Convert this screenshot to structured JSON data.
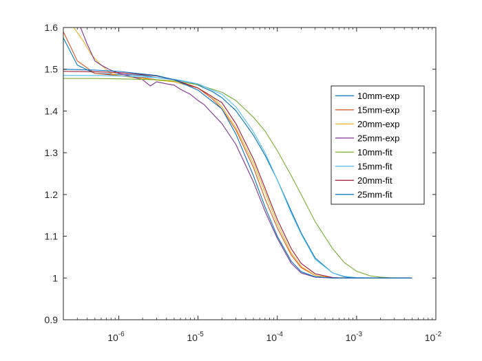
{
  "chart_data": {
    "type": "line",
    "xscale": "log",
    "xlim": [
      2e-07,
      0.01
    ],
    "ylim": [
      0.9,
      1.6
    ],
    "grid": false,
    "legend_position": "top-right",
    "xticks": [
      {
        "value": 1e-06,
        "base": "10",
        "exp": "-6"
      },
      {
        "value": 1e-05,
        "base": "10",
        "exp": "-5"
      },
      {
        "value": 0.0001,
        "base": "10",
        "exp": "-4"
      },
      {
        "value": 0.001,
        "base": "10",
        "exp": "-3"
      },
      {
        "value": 0.01,
        "base": "10",
        "exp": "-2"
      }
    ],
    "yticks": [
      {
        "value": 0.9,
        "label": "0.9"
      },
      {
        "value": 1.0,
        "label": "1"
      },
      {
        "value": 1.1,
        "label": "1.1"
      },
      {
        "value": 1.2,
        "label": "1.2"
      },
      {
        "value": 1.3,
        "label": "1.3"
      },
      {
        "value": 1.4,
        "label": "1.4"
      },
      {
        "value": 1.5,
        "label": "1.5"
      },
      {
        "value": 1.6,
        "label": "1.6"
      }
    ],
    "series": [
      {
        "name": "10mm-exp",
        "color": "#0072BD",
        "x": [
          2e-07,
          3e-07,
          5e-07,
          1e-06,
          2e-06,
          3e-06,
          5e-06,
          8e-06,
          1e-05,
          1.5e-05,
          2e-05,
          3e-05,
          5e-05,
          7e-05,
          0.0001,
          0.00015,
          0.0002,
          0.0003,
          0.0005,
          0.0007,
          0.001,
          0.002,
          0.005
        ],
        "y": [
          1.575,
          1.51,
          1.49,
          1.488,
          1.485,
          1.48,
          1.475,
          1.468,
          1.462,
          1.447,
          1.432,
          1.401,
          1.342,
          1.294,
          1.235,
          1.16,
          1.108,
          1.048,
          1.012,
          1.003,
          1.0,
          1.0,
          1.0
        ]
      },
      {
        "name": "15mm-exp",
        "color": "#D95319",
        "x": [
          2e-07,
          3e-07,
          5e-07,
          1e-06,
          2e-06,
          3e-06,
          5e-06,
          8e-06,
          1e-05,
          1.5e-05,
          2e-05,
          3e-05,
          5e-05,
          7e-05,
          0.0001,
          0.00015,
          0.0002,
          0.0003,
          0.0005,
          0.0007,
          0.001,
          0.002,
          0.005
        ],
        "y": [
          1.59,
          1.52,
          1.49,
          1.485,
          1.48,
          1.475,
          1.47,
          1.46,
          1.455,
          1.43,
          1.405,
          1.355,
          1.265,
          1.19,
          1.12,
          1.055,
          1.025,
          1.006,
          1.0,
          1.0,
          1.0,
          1.0,
          1.0
        ]
      },
      {
        "name": "20mm-exp",
        "color": "#EDB120",
        "x": [
          2e-07,
          2.7e-07,
          3.5e-07,
          4.5e-07,
          6e-07,
          8e-07,
          1e-06,
          1.5e-06,
          2e-06,
          3e-06,
          5e-06,
          8e-06,
          1e-05,
          1.5e-05,
          2e-05,
          3e-05,
          5e-05,
          7e-05,
          0.0001,
          0.00015,
          0.0002,
          0.0003,
          0.0005,
          0.0007,
          0.001,
          0.002,
          0.005
        ],
        "y": [
          1.68,
          1.6,
          1.57,
          1.535,
          1.51,
          1.49,
          1.485,
          1.48,
          1.478,
          1.474,
          1.47,
          1.462,
          1.455,
          1.435,
          1.41,
          1.36,
          1.275,
          1.205,
          1.13,
          1.06,
          1.028,
          1.006,
          1.0,
          1.0,
          1.0,
          1.0,
          1.0
        ]
      },
      {
        "name": "25mm-exp",
        "color": "#7E2F8E",
        "x": [
          2e-07,
          3.3e-07,
          4e-07,
          5e-07,
          6e-07,
          7.5e-07,
          1e-06,
          1.3e-06,
          2e-06,
          2.5e-06,
          3e-06,
          4e-06,
          5e-06,
          6e-06,
          8e-06,
          1e-05,
          1.2e-05,
          1.5e-05,
          2e-05,
          3e-05,
          5e-05,
          7e-05,
          0.0001,
          0.00015,
          0.0002,
          0.0003,
          0.0005,
          0.0007,
          0.001,
          0.002,
          0.005
        ],
        "y": [
          1.7,
          1.6,
          1.56,
          1.52,
          1.51,
          1.5,
          1.49,
          1.485,
          1.475,
          1.46,
          1.47,
          1.465,
          1.462,
          1.452,
          1.44,
          1.425,
          1.415,
          1.395,
          1.37,
          1.32,
          1.23,
          1.16,
          1.095,
          1.035,
          1.012,
          1.002,
          1.0,
          1.0,
          1.0,
          1.0,
          1.0
        ]
      },
      {
        "name": "10mm-fit",
        "color": "#77AC30",
        "x": [
          2e-07,
          5e-07,
          1e-06,
          3e-06,
          5e-06,
          1e-05,
          2e-05,
          3e-05,
          5e-05,
          7e-05,
          0.0001,
          0.00015,
          0.0002,
          0.0003,
          0.0005,
          0.0007,
          0.001,
          0.0015,
          0.002,
          0.003,
          0.005
        ],
        "y": [
          1.478,
          1.478,
          1.477,
          1.475,
          1.472,
          1.463,
          1.445,
          1.425,
          1.385,
          1.352,
          1.305,
          1.245,
          1.2,
          1.135,
          1.07,
          1.037,
          1.016,
          1.005,
          1.002,
          1.0,
          1.0
        ]
      },
      {
        "name": "15mm-fit",
        "color": "#4DBEEE",
        "x": [
          2e-07,
          5e-07,
          1e-06,
          3e-06,
          5e-06,
          1e-05,
          2e-05,
          3e-05,
          5e-05,
          7e-05,
          0.0001,
          0.00015,
          0.0002,
          0.0003,
          0.0005,
          0.0007,
          0.001,
          0.002,
          0.005
        ],
        "y": [
          1.485,
          1.485,
          1.484,
          1.48,
          1.476,
          1.465,
          1.44,
          1.41,
          1.35,
          1.3,
          1.235,
          1.155,
          1.105,
          1.045,
          1.012,
          1.004,
          1.001,
          1.0,
          1.0
        ]
      },
      {
        "name": "20mm-fit",
        "color": "#A2142F",
        "x": [
          2e-07,
          5e-07,
          1e-06,
          3e-06,
          5e-06,
          1e-05,
          2e-05,
          3e-05,
          5e-05,
          7e-05,
          0.0001,
          0.00015,
          0.0002,
          0.0003,
          0.0005,
          0.0007,
          0.001,
          0.002,
          0.005
        ],
        "y": [
          1.495,
          1.494,
          1.492,
          1.484,
          1.475,
          1.455,
          1.42,
          1.37,
          1.285,
          1.215,
          1.14,
          1.07,
          1.035,
          1.01,
          1.001,
          1.0,
          1.0,
          1.0,
          1.0
        ]
      },
      {
        "name": "25mm-fit",
        "color": "#0072BD",
        "x": [
          2e-07,
          5e-07,
          1e-06,
          3e-06,
          5e-06,
          1e-05,
          2e-05,
          3e-05,
          5e-05,
          7e-05,
          0.0001,
          0.00015,
          0.0002,
          0.0003,
          0.0005,
          0.0007,
          0.001,
          0.002,
          0.005
        ],
        "y": [
          1.5,
          1.498,
          1.495,
          1.485,
          1.475,
          1.45,
          1.405,
          1.345,
          1.245,
          1.17,
          1.1,
          1.04,
          1.015,
          1.003,
          1.0,
          1.0,
          1.0,
          1.0,
          1.0
        ]
      }
    ]
  }
}
